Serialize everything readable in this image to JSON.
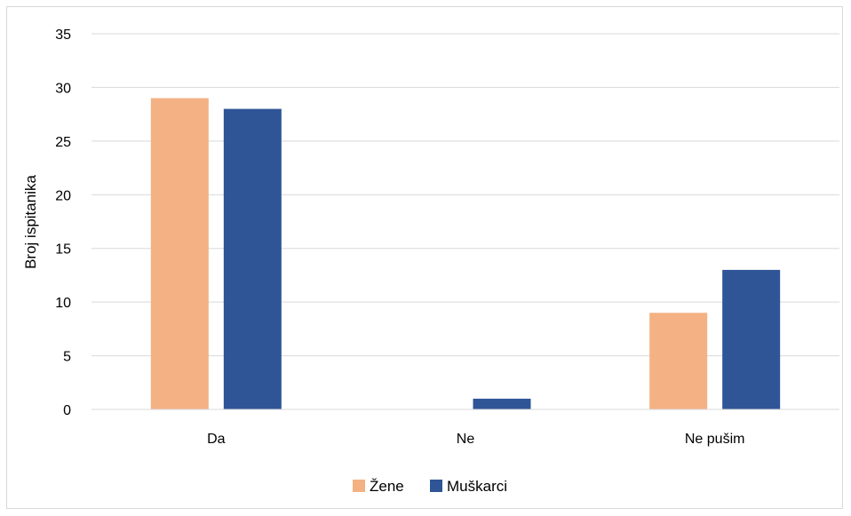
{
  "chart_data": {
    "type": "bar",
    "title": "",
    "xlabel": "",
    "ylabel": "Broj ispitanika",
    "categories": [
      "Da",
      "Ne",
      "Ne pušim"
    ],
    "series": [
      {
        "name": "Žene",
        "values": [
          29,
          0,
          9
        ],
        "color": "#f4b183"
      },
      {
        "name": "Muškarci",
        "values": [
          28,
          1,
          13
        ],
        "color": "#2f5597"
      }
    ],
    "ylim": [
      0,
      35
    ],
    "yticks": [
      0,
      5,
      10,
      15,
      20,
      25,
      30,
      35
    ],
    "grid": true,
    "legend_position": "bottom"
  }
}
